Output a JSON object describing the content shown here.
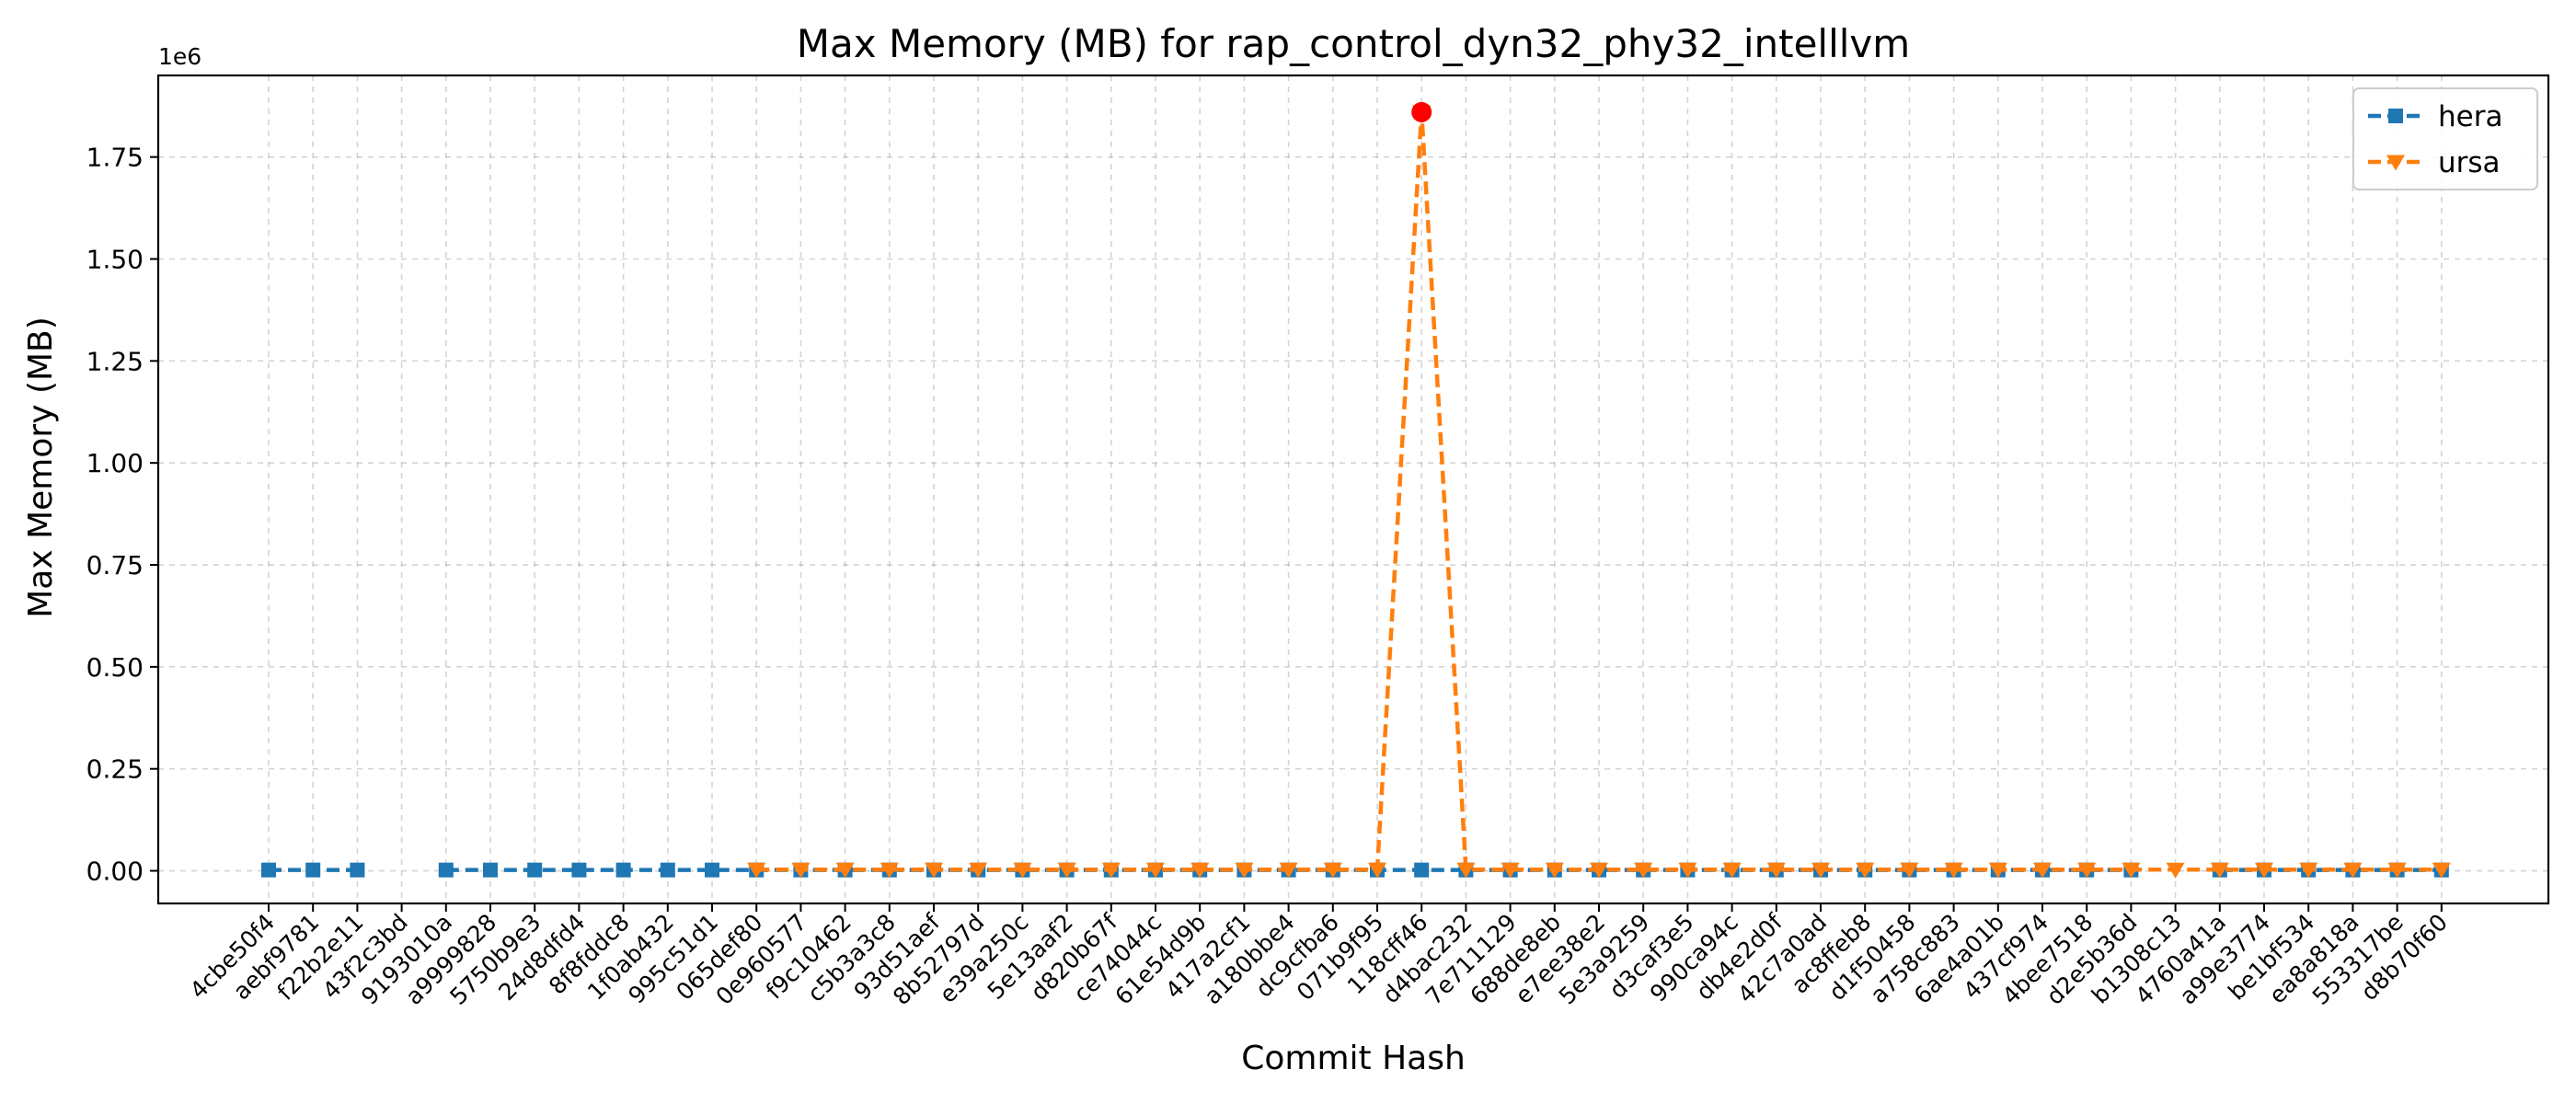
{
  "chart_data": {
    "type": "line",
    "title": "Max Memory (MB) for rap_control_dyn32_phy32_intelllvm",
    "xlabel": "Commit Hash",
    "ylabel": "Max Memory (MB)",
    "y_offset_label": "1e6",
    "y_scale": 1000000,
    "ylim": [
      -80000,
      1950000
    ],
    "yticks": [
      0,
      250000,
      500000,
      750000,
      1000000,
      1250000,
      1500000,
      1750000
    ],
    "ytick_labels": [
      "0.00",
      "0.25",
      "0.50",
      "0.75",
      "1.00",
      "1.25",
      "1.50",
      "1.75"
    ],
    "grid": true,
    "legend_position": "top-right",
    "categories": [
      "4cbe50f4",
      "aebf9781",
      "f22b2e11",
      "43f2c3bd",
      "9193010a",
      "a9999828",
      "5750b9e3",
      "24d8dfd4",
      "8f8fddc8",
      "1f0ab432",
      "995c51d1",
      "065def80",
      "0e960577",
      "f9c10462",
      "c5b3a3c8",
      "93d51aef",
      "8b52797d",
      "e39a250c",
      "5e13aaf2",
      "d820b67f",
      "ce74044c",
      "61e54d9b",
      "417a2cf1",
      "a180bbe4",
      "dc9cfba6",
      "071b9f95",
      "118cff46",
      "d4bac232",
      "7e711129",
      "688de8eb",
      "e7ee38e2",
      "5e3a9259",
      "d3caf3e5",
      "990ca94c",
      "db4e2d0f",
      "42c7a0ad",
      "ac8ffeb8",
      "d1f50458",
      "a758c883",
      "6ae4a01b",
      "437cf974",
      "4bee7518",
      "d2e5b36d",
      "b1308c13",
      "4760a41a",
      "a99e3774",
      "be1bf534",
      "ea8a818a",
      "553317be",
      "d8b70f60"
    ],
    "series": [
      {
        "name": "hera",
        "color": "#1f77b4",
        "marker": "square",
        "values": [
          2000,
          2000,
          2000,
          null,
          2000,
          2000,
          2000,
          2000,
          2000,
          2000,
          2000,
          2000,
          2000,
          2000,
          2000,
          2000,
          2000,
          2000,
          2000,
          2000,
          2000,
          2000,
          2000,
          2000,
          2000,
          2000,
          2000,
          2000,
          2000,
          2000,
          2000,
          2000,
          2000,
          2000,
          2000,
          2000,
          2000,
          2000,
          2000,
          2000,
          2000,
          2000,
          2000,
          null,
          2000,
          2000,
          2000,
          2000,
          2000,
          2000
        ]
      },
      {
        "name": "ursa",
        "color": "#ff7f0e",
        "marker": "triangle-down",
        "values": [
          null,
          null,
          null,
          null,
          null,
          null,
          null,
          null,
          null,
          null,
          null,
          3000,
          3000,
          3000,
          3000,
          3000,
          3000,
          3000,
          3000,
          3000,
          3000,
          3000,
          3000,
          3000,
          3000,
          3000,
          1860000,
          3000,
          3000,
          3000,
          3000,
          3000,
          3000,
          3000,
          3000,
          3000,
          3000,
          3000,
          3000,
          3000,
          3000,
          3000,
          3000,
          3000,
          3000,
          3000,
          3000,
          3000,
          3000,
          3000
        ]
      }
    ],
    "highlight": {
      "index": 26,
      "value": 1860000,
      "color": "#ff0000"
    }
  }
}
